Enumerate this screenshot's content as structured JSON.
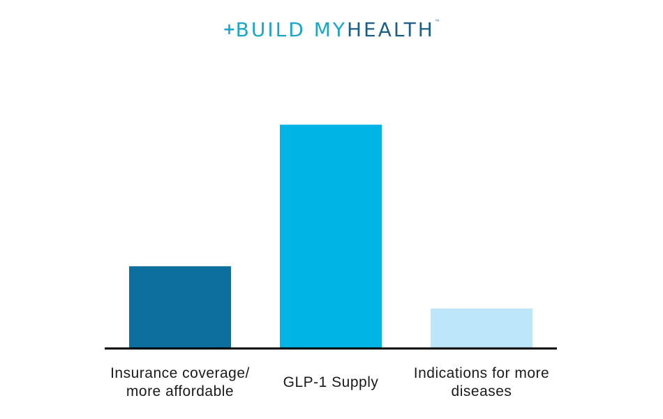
{
  "logo": {
    "plus": "+",
    "word1": "BUILD",
    "word2": "MY",
    "word3": "HEALTH",
    "tm": "™",
    "colors": {
      "build": "#1aa6c8",
      "my": "#1aa6c8",
      "health": "#1b5f86"
    }
  },
  "chart_data": {
    "type": "bar",
    "categories": [
      [
        "Insurance coverage/",
        "more affordable"
      ],
      [
        "GLP-1 Supply"
      ],
      [
        "Indications for more",
        "diseases"
      ]
    ],
    "values": [
      36,
      98,
      17.5
    ],
    "ylim": [
      0,
      100
    ],
    "colors": [
      "#0d6f9e",
      "#00b4e6",
      "#bde6fb"
    ],
    "axis_color": "#000000",
    "grid": false,
    "legend": "none"
  }
}
